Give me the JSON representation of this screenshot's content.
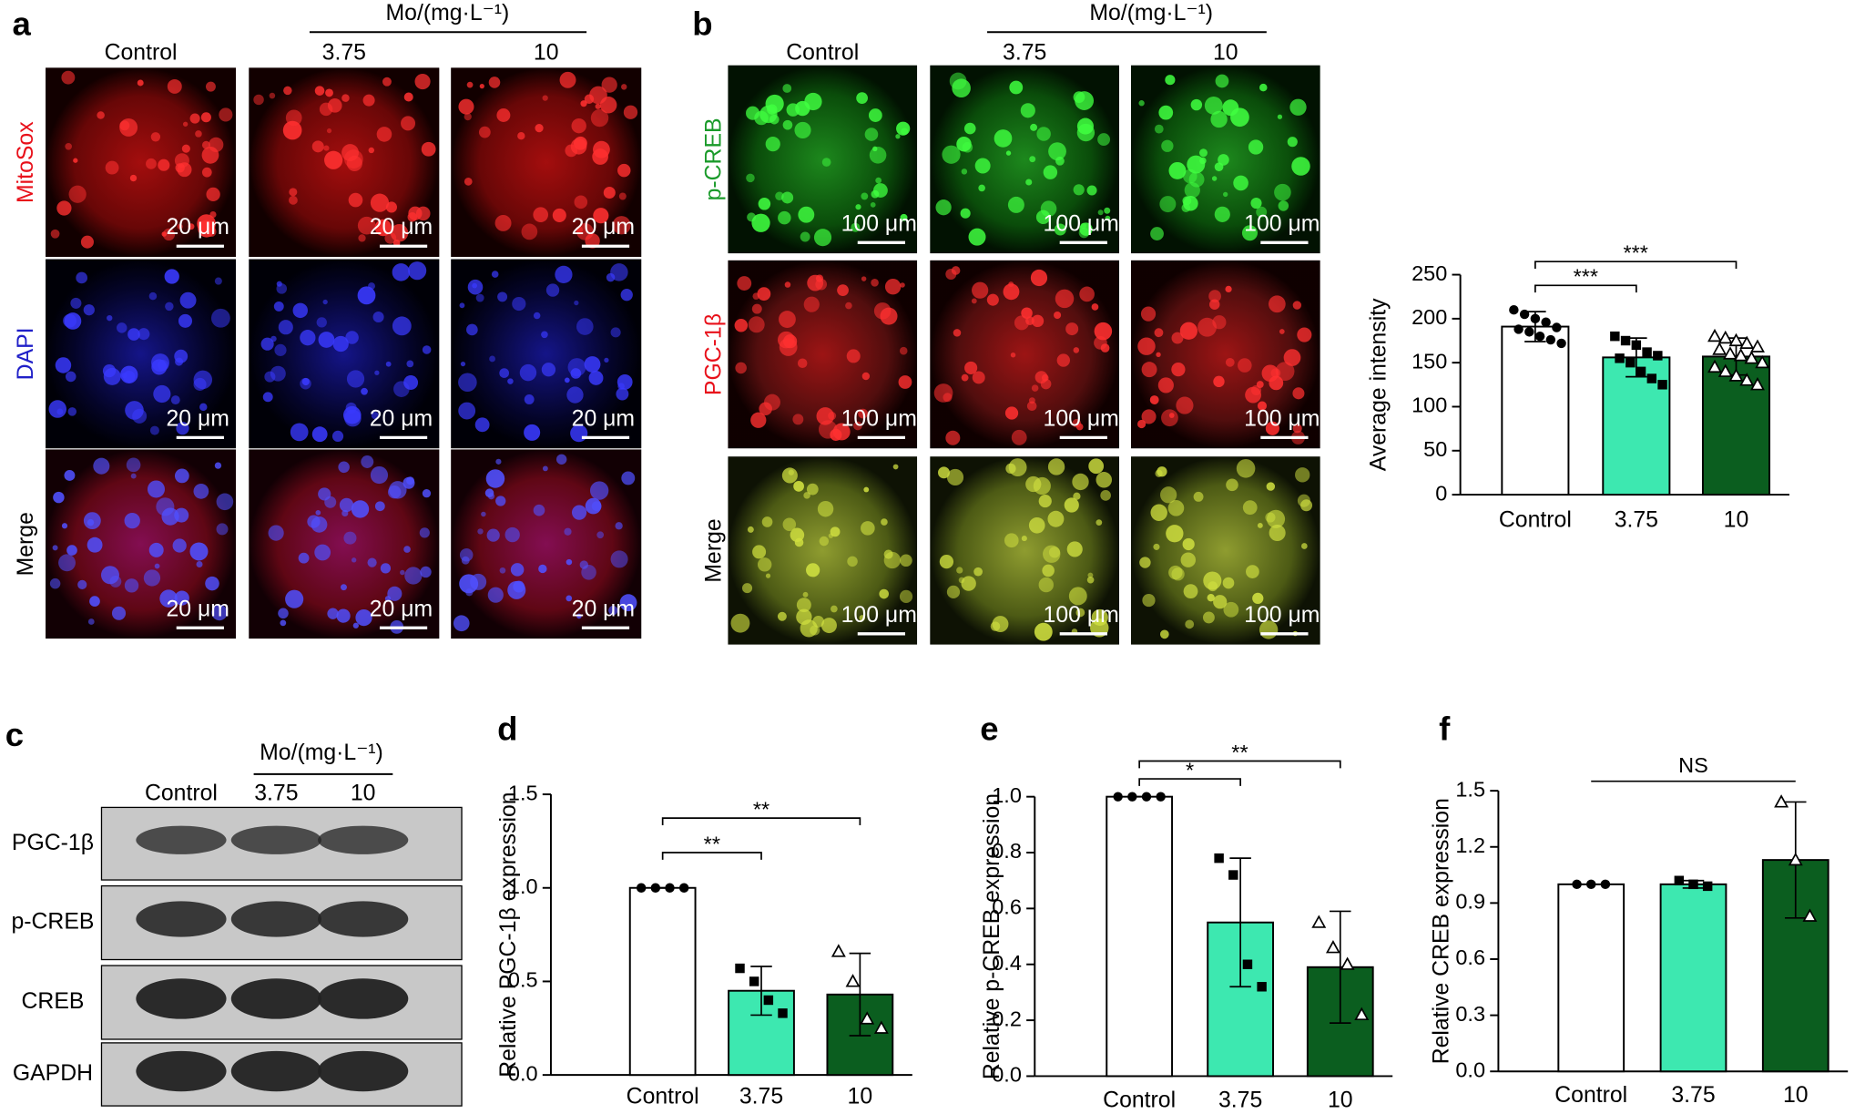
{
  "panels": {
    "a": {
      "label": "a",
      "header": "Mo/(mg·L⁻¹)",
      "columns": [
        "Control",
        "3.75",
        "10"
      ],
      "rows": [
        "MitoSox",
        "DAPI",
        "Merge"
      ],
      "row_colors": [
        "#e8101a",
        "#2020c8",
        "#000000"
      ],
      "scale_bar": "20 μm"
    },
    "b": {
      "label": "b",
      "header": "Mo/(mg·L⁻¹)",
      "columns": [
        "Control",
        "3.75",
        "10"
      ],
      "rows": [
        "p-CREB",
        "PGC-1β",
        "Merge"
      ],
      "row_colors": [
        "#1a9a2a",
        "#e8101a",
        "#000000"
      ],
      "scale_bar": "100 μm"
    },
    "c": {
      "label": "c",
      "header": "Mo/(mg·L⁻¹)",
      "columns": [
        "Control",
        "3.75",
        "10"
      ],
      "rows": [
        "PGC-1β",
        "p-CREB",
        "CREB",
        "GAPDH"
      ]
    }
  },
  "chart_data": [
    {
      "type": "bar",
      "ylabel": "Average intensity",
      "categories": [
        "Control",
        "3.75",
        "10"
      ],
      "values": [
        191,
        156,
        157
      ],
      "errors": [
        17,
        22,
        21
      ],
      "points": [
        [
          210,
          205,
          200,
          196,
          190,
          188,
          185,
          180,
          176,
          172
        ],
        [
          180,
          175,
          170,
          162,
          158,
          155,
          150,
          140,
          132,
          125
        ],
        [
          180,
          178,
          175,
          172,
          168,
          165,
          160,
          158,
          155,
          150,
          145,
          140,
          135,
          130,
          125
        ]
      ],
      "colors": [
        "#ffffff",
        "#3de8b0",
        "#0b5e1f"
      ],
      "markers": [
        "circle",
        "square",
        "triangle"
      ],
      "ylim": [
        0,
        250
      ],
      "yticks": [
        0,
        50,
        100,
        150,
        200,
        250
      ],
      "annotations": [
        {
          "between": [
            "Control",
            "3.75"
          ],
          "label": "***"
        },
        {
          "between": [
            "Control",
            "10"
          ],
          "label": "***"
        }
      ]
    },
    {
      "type": "bar",
      "panel": "d",
      "ylabel": "Relative PGC-1β expression",
      "categories": [
        "Control",
        "3.75",
        "10"
      ],
      "values": [
        1.0,
        0.45,
        0.43
      ],
      "errors": [
        0,
        0.13,
        0.22
      ],
      "points": [
        [
          1.0,
          1.0,
          1.0,
          1.0
        ],
        [
          0.57,
          0.5,
          0.4,
          0.33
        ],
        [
          0.66,
          0.5,
          0.3,
          0.25
        ]
      ],
      "colors": [
        "#ffffff",
        "#3de8b0",
        "#0b5e1f"
      ],
      "markers": [
        "circle",
        "square",
        "triangle"
      ],
      "ylim": [
        0,
        1.5
      ],
      "yticks": [
        {
          "value": 0,
          "label": "0.0"
        },
        {
          "value": 0.5,
          "label": "0.5"
        },
        {
          "value": 1,
          "label": "1.0"
        },
        {
          "value": 1.5,
          "label": "1.5"
        }
      ],
      "annotations": [
        {
          "between": [
            "Control",
            "3.75"
          ],
          "label": "**"
        },
        {
          "between": [
            "Control",
            "10"
          ],
          "label": "**"
        }
      ]
    },
    {
      "type": "bar",
      "panel": "e",
      "ylabel": "Relative p-CREB expression",
      "categories": [
        "Control",
        "3.75",
        "10"
      ],
      "values": [
        1.0,
        0.55,
        0.39
      ],
      "errors": [
        0,
        0.23,
        0.2
      ],
      "points": [
        [
          1.0,
          1.0,
          1.0,
          1.0
        ],
        [
          0.78,
          0.72,
          0.4,
          0.32
        ],
        [
          0.55,
          0.46,
          0.4,
          0.22
        ]
      ],
      "colors": [
        "#ffffff",
        "#3de8b0",
        "#0b5e1f"
      ],
      "markers": [
        "circle",
        "square",
        "triangle"
      ],
      "ylim": [
        0,
        1.0
      ],
      "yticks": [
        {
          "value": 0,
          "label": "0.0"
        },
        0.2,
        0.4,
        0.6,
        0.8,
        {
          "value": 1,
          "label": "1.0"
        }
      ],
      "annotations": [
        {
          "between": [
            "Control",
            "3.75"
          ],
          "label": "*"
        },
        {
          "between": [
            "Control",
            "10"
          ],
          "label": "**"
        }
      ]
    },
    {
      "type": "bar",
      "panel": "f",
      "ylabel": "Relative CREB expression",
      "categories": [
        "Control",
        "3.75",
        "10"
      ],
      "values": [
        1.0,
        1.0,
        1.13
      ],
      "errors": [
        0,
        0.02,
        0.31
      ],
      "points": [
        [
          1.0,
          1.0,
          1.0
        ],
        [
          1.02,
          1.0,
          0.99
        ],
        [
          1.44,
          1.13,
          0.83
        ]
      ],
      "colors": [
        "#ffffff",
        "#3de8b0",
        "#0b5e1f"
      ],
      "markers": [
        "circle",
        "square",
        "triangle"
      ],
      "ylim": [
        0,
        1.5
      ],
      "yticks": [
        {
          "value": 0,
          "label": "0.0"
        },
        0.3,
        0.6,
        0.9,
        1.2,
        1.5
      ],
      "annotations": [
        {
          "between": [
            "Control",
            "10"
          ],
          "label": "NS"
        }
      ]
    }
  ]
}
